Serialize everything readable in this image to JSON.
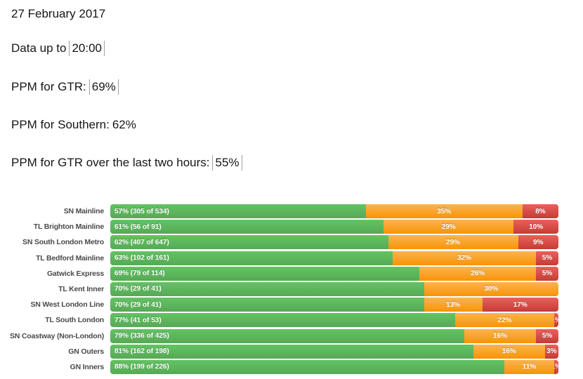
{
  "header": {
    "date": "27 February 2017",
    "lines": [
      {
        "label": "Data up to",
        "value": "20:00",
        "boxed": true
      },
      {
        "label": "PPM for GTR:",
        "value": "69%",
        "boxed": true
      },
      {
        "label": "PPM for Southern:",
        "value": "62%",
        "boxed": false
      },
      {
        "label": "PPM for GTR over the last two hours:",
        "value": "55%",
        "boxed": true
      }
    ]
  },
  "chart_data": {
    "type": "bar",
    "orientation": "horizontal",
    "stacked": true,
    "value_unit": "%",
    "xlim": [
      0,
      100
    ],
    "grid": false,
    "legend": false,
    "colors": {
      "green": "#5cb85c",
      "orange": "#f89406",
      "red": "#d9534f"
    },
    "rows": [
      {
        "category": "SN Mainline",
        "segments": [
          {
            "series": "green",
            "value": 57,
            "label": "57% (305 of 534)"
          },
          {
            "series": "orange",
            "value": 35,
            "label": "35%"
          },
          {
            "series": "red",
            "value": 8,
            "label": "8%"
          }
        ]
      },
      {
        "category": "TL Brighton Mainline",
        "segments": [
          {
            "series": "green",
            "value": 61,
            "label": "61% (56 of 91)"
          },
          {
            "series": "orange",
            "value": 29,
            "label": "29%"
          },
          {
            "series": "red",
            "value": 10,
            "label": "10%"
          }
        ]
      },
      {
        "category": "SN South London Metro",
        "segments": [
          {
            "series": "green",
            "value": 62,
            "label": "62% (407 of 647)"
          },
          {
            "series": "orange",
            "value": 29,
            "label": "29%"
          },
          {
            "series": "red",
            "value": 9,
            "label": "9%"
          }
        ]
      },
      {
        "category": "TL Bedford Mainline",
        "segments": [
          {
            "series": "green",
            "value": 63,
            "label": "63% (102 of 161)"
          },
          {
            "series": "orange",
            "value": 32,
            "label": "32%"
          },
          {
            "series": "red",
            "value": 5,
            "label": "5%"
          }
        ]
      },
      {
        "category": "Gatwick Express",
        "segments": [
          {
            "series": "green",
            "value": 69,
            "label": "69% (79 of 114)"
          },
          {
            "series": "orange",
            "value": 26,
            "label": "26%"
          },
          {
            "series": "red",
            "value": 5,
            "label": "5%"
          }
        ]
      },
      {
        "category": "TL Kent Inner",
        "segments": [
          {
            "series": "green",
            "value": 70,
            "label": "70% (29 of 41)"
          },
          {
            "series": "orange",
            "value": 30,
            "label": "30%"
          }
        ]
      },
      {
        "category": "SN West London Line",
        "segments": [
          {
            "series": "green",
            "value": 70,
            "label": "70% (29 of 41)"
          },
          {
            "series": "orange",
            "value": 13,
            "label": "13%"
          },
          {
            "series": "red",
            "value": 17,
            "label": "17%"
          }
        ]
      },
      {
        "category": "TL South London",
        "segments": [
          {
            "series": "green",
            "value": 77,
            "label": "77% (41 of 53)"
          },
          {
            "series": "orange",
            "value": 22,
            "label": "22%"
          },
          {
            "series": "red",
            "value": 1,
            "label": "1%"
          }
        ]
      },
      {
        "category": "SN Coastway (Non-London)",
        "segments": [
          {
            "series": "green",
            "value": 79,
            "label": "79% (336 of 425)"
          },
          {
            "series": "orange",
            "value": 16,
            "label": "16%"
          },
          {
            "series": "red",
            "value": 5,
            "label": "5%"
          }
        ]
      },
      {
        "category": "GN Outers",
        "segments": [
          {
            "series": "green",
            "value": 81,
            "label": "81% (162 of 198)"
          },
          {
            "series": "orange",
            "value": 16,
            "label": "16%"
          },
          {
            "series": "red",
            "value": 3,
            "label": "3%"
          }
        ]
      },
      {
        "category": "GN Inners",
        "segments": [
          {
            "series": "green",
            "value": 88,
            "label": "88% (199 of 226)"
          },
          {
            "series": "orange",
            "value": 11,
            "label": "11%"
          },
          {
            "series": "red",
            "value": 1,
            "label": "1%"
          }
        ]
      }
    ]
  }
}
